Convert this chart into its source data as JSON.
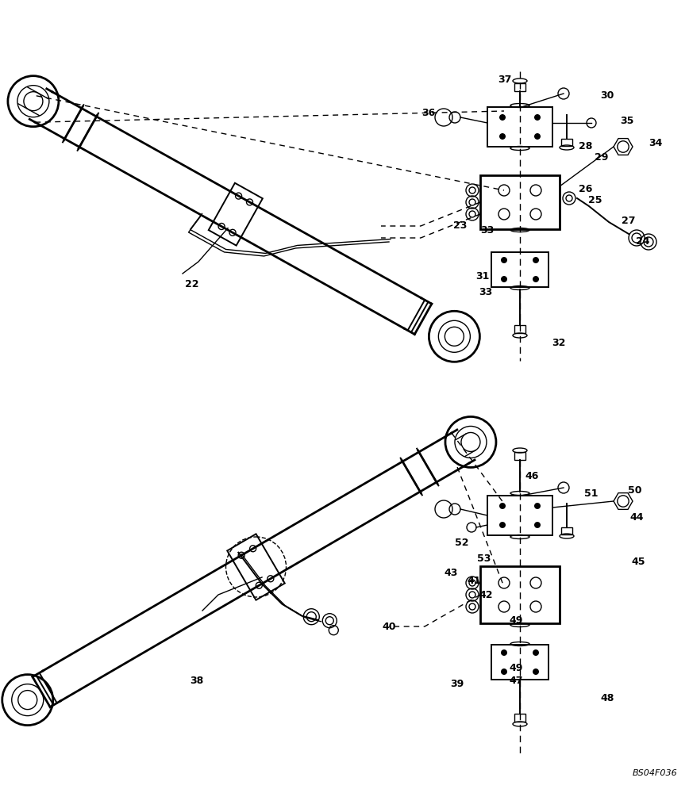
{
  "bg_color": "#ffffff",
  "line_color": "#000000",
  "fig_width": 8.68,
  "fig_height": 10.0,
  "dpi": 100,
  "watermark": "BS04F036"
}
